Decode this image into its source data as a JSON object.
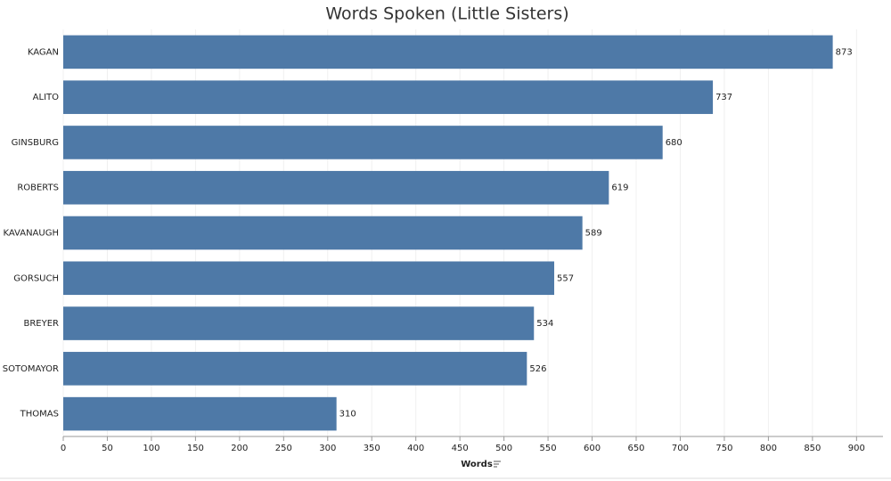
{
  "chart_data": {
    "type": "bar",
    "orientation": "horizontal",
    "title": "Words Spoken (Little Sisters)",
    "categories": [
      "KAGAN",
      "ALITO",
      "GINSBURG",
      "ROBERTS",
      "KAVANAUGH",
      "GORSUCH",
      "BREYER",
      "SOTOMAYOR",
      "THOMAS"
    ],
    "values": [
      873,
      737,
      680,
      619,
      589,
      557,
      534,
      526,
      310
    ],
    "color": "#4e79a7",
    "xlabel": "Words",
    "xlim": [
      0,
      930
    ],
    "xticks": [
      0,
      50,
      100,
      150,
      200,
      250,
      300,
      350,
      400,
      450,
      500,
      550,
      600,
      650,
      700,
      750,
      800,
      850,
      900
    ],
    "grid": true
  }
}
